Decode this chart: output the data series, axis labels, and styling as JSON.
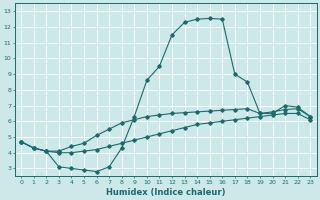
{
  "xlabel": "Humidex (Indice chaleur)",
  "bg_color": "#cce8e8",
  "line_color": "#1a6b6b",
  "grid_color": "#aacaca",
  "xlim": [
    -0.5,
    23.5
  ],
  "ylim": [
    2.5,
    13.5
  ],
  "xticks": [
    0,
    1,
    2,
    3,
    4,
    5,
    6,
    7,
    8,
    9,
    10,
    11,
    12,
    13,
    14,
    15,
    16,
    17,
    18,
    19,
    20,
    21,
    22,
    23
  ],
  "yticks": [
    3,
    4,
    5,
    6,
    7,
    8,
    9,
    10,
    11,
    12,
    13
  ],
  "line1_x": [
    0,
    1,
    2,
    3,
    4,
    5,
    6,
    7,
    8,
    9,
    10,
    11,
    12,
    13,
    14,
    15,
    16,
    17,
    18,
    19,
    20,
    21,
    22,
    23
  ],
  "line1_y": [
    4.7,
    4.3,
    4.1,
    3.1,
    3.0,
    2.9,
    2.8,
    3.1,
    4.3,
    6.3,
    8.6,
    9.5,
    11.5,
    12.3,
    12.5,
    12.55,
    12.5,
    9.0,
    8.5,
    6.5,
    6.5,
    7.0,
    6.9,
    6.3
  ],
  "line2_x": [
    0,
    1,
    2,
    3,
    4,
    5,
    6,
    7,
    8,
    9,
    10,
    11,
    12,
    13,
    14,
    15,
    16,
    17,
    18,
    19,
    20,
    21,
    22,
    23
  ],
  "line2_y": [
    4.7,
    4.3,
    4.1,
    4.1,
    4.4,
    4.6,
    5.1,
    5.5,
    5.9,
    6.1,
    6.3,
    6.4,
    6.5,
    6.55,
    6.6,
    6.65,
    6.7,
    6.75,
    6.8,
    6.5,
    6.6,
    6.75,
    6.8,
    6.3
  ],
  "line3_x": [
    0,
    1,
    2,
    3,
    4,
    5,
    6,
    7,
    8,
    9,
    10,
    11,
    12,
    13,
    14,
    15,
    16,
    17,
    18,
    19,
    20,
    21,
    22,
    23
  ],
  "line3_y": [
    4.7,
    4.3,
    4.1,
    4.0,
    4.0,
    4.1,
    4.2,
    4.4,
    4.6,
    4.8,
    5.0,
    5.2,
    5.4,
    5.6,
    5.8,
    5.9,
    6.0,
    6.1,
    6.2,
    6.3,
    6.4,
    6.5,
    6.5,
    6.1
  ]
}
